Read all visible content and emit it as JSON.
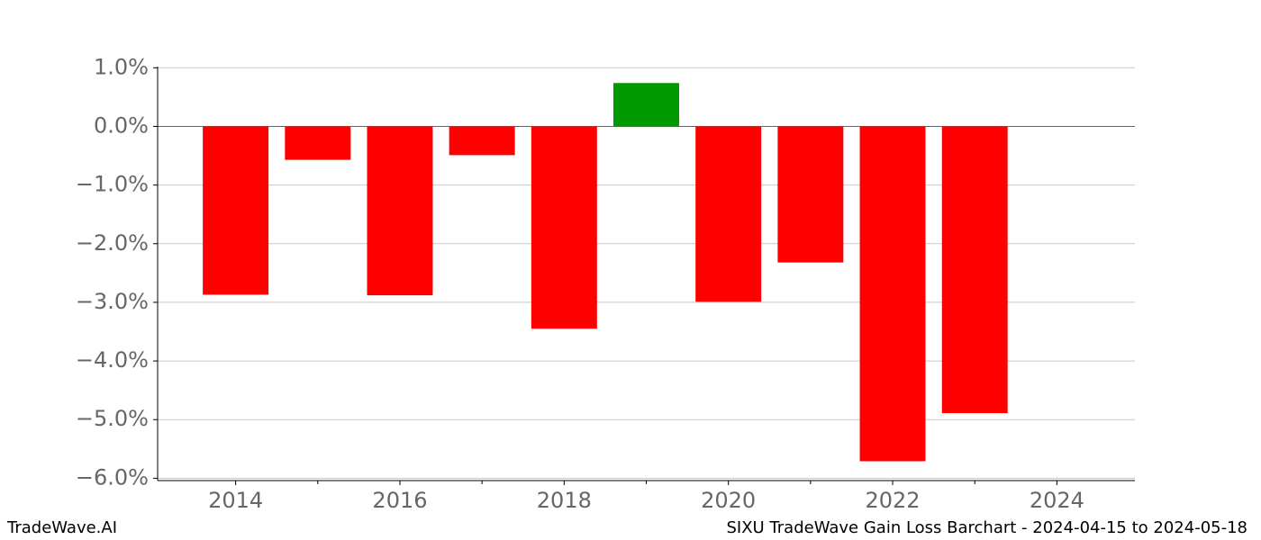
{
  "chart_data": {
    "type": "bar",
    "title": "SIXU TradeWave Gain Loss Barchart - 2024-04-15 to 2024-05-18",
    "source": "TradeWave.AI",
    "x": [
      2014,
      2015,
      2016,
      2017,
      2018,
      2019,
      2020,
      2021,
      2022,
      2023
    ],
    "values": [
      -2.87,
      -0.57,
      -2.88,
      -0.49,
      -3.45,
      0.74,
      -2.99,
      -2.32,
      -5.71,
      -4.89
    ],
    "positive_color": "#009900",
    "negative_color": "#ff0000",
    "bar_width": 0.8,
    "xlim": [
      2013.05,
      2024.95
    ],
    "xticks": [
      2014,
      2016,
      2018,
      2020,
      2022,
      2024
    ],
    "xminorticks": [
      2015,
      2017,
      2019,
      2021,
      2023
    ],
    "ylim": [
      -6.04,
      1.02
    ],
    "yticks": [
      {
        "value": 1,
        "label": "1.0%"
      },
      {
        "value": 0,
        "label": "0.0%"
      },
      {
        "value": -1,
        "label": "−1.0%"
      },
      {
        "value": -2,
        "label": "−2.0%"
      },
      {
        "value": -3,
        "label": "−3.0%"
      },
      {
        "value": -4,
        "label": "−4.0%"
      },
      {
        "value": -5,
        "label": "−5.0%"
      },
      {
        "value": -6,
        "label": "−6.0%"
      }
    ],
    "grid": true
  }
}
